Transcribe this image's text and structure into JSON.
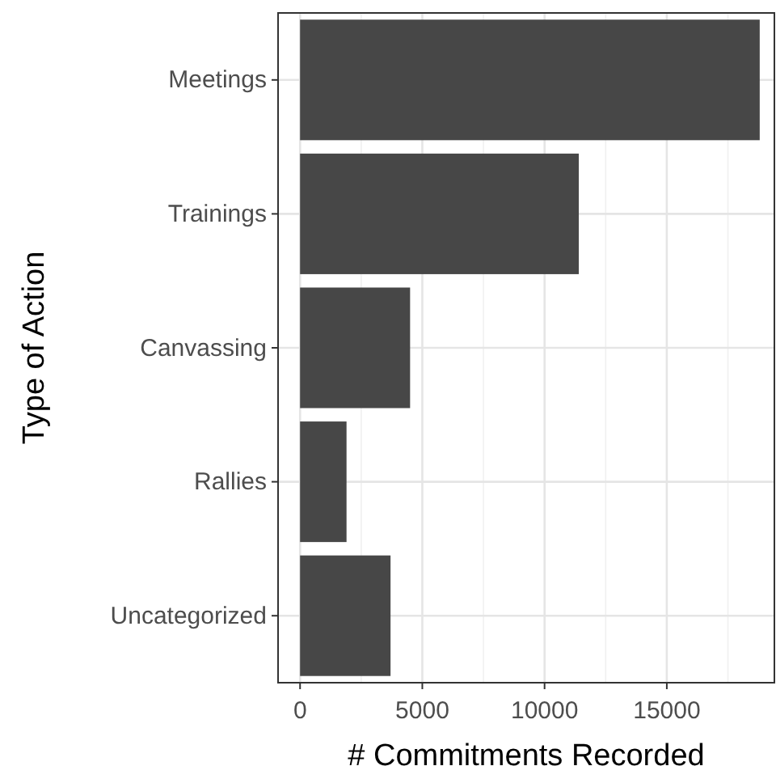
{
  "chart_data": {
    "type": "bar",
    "orientation": "horizontal",
    "xlabel": "# Commitments Recorded",
    "ylabel": "Type of Action",
    "categories": [
      "Meetings",
      "Trainings",
      "Canvassing",
      "Rallies",
      "Uncategorized"
    ],
    "values": [
      18800,
      11400,
      4500,
      1900,
      3700
    ],
    "color": "#474747",
    "xlim": [
      -900,
      19400
    ],
    "xticks": [
      0,
      5000,
      10000,
      15000
    ],
    "grid": true
  }
}
